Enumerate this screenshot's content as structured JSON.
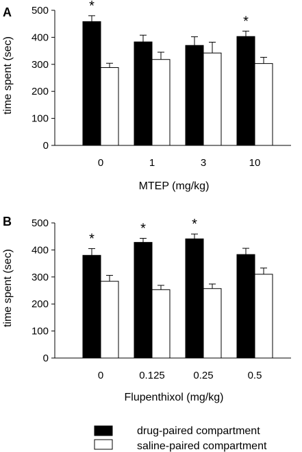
{
  "chart_data": [
    {
      "type": "bar",
      "panel_label": "A",
      "categories": [
        "0",
        "1",
        "3",
        "10"
      ],
      "xlabel": "MTEP (mg/kg)",
      "ylabel": "time spent (sec)",
      "ylim": [
        0,
        500
      ],
      "yticks": [
        "0",
        "100",
        "200",
        "300",
        "400",
        "500"
      ],
      "series": [
        {
          "name": "drug-paired compartment",
          "color": "#000000",
          "values": [
            458,
            383,
            370,
            403
          ],
          "errors": [
            22,
            25,
            32,
            20
          ]
        },
        {
          "name": "saline-paired compartment",
          "color": "#ffffff",
          "values": [
            288,
            318,
            342,
            303
          ],
          "errors": [
            16,
            27,
            40,
            23
          ]
        }
      ],
      "annotations": [
        {
          "text": "*",
          "category": "0"
        },
        {
          "text": "*",
          "category": "10"
        }
      ],
      "grid": false
    },
    {
      "type": "bar",
      "panel_label": "B",
      "categories": [
        "0",
        "0.125",
        "0.25",
        "0.5"
      ],
      "xlabel": "Flupenthixol (mg/kg)",
      "ylabel": "time spent (sec)",
      "ylim": [
        0,
        500
      ],
      "yticks": [
        "0",
        "100",
        "200",
        "300",
        "400",
        "500"
      ],
      "series": [
        {
          "name": "drug-paired compartment",
          "color": "#000000",
          "values": [
            380,
            428,
            441,
            383
          ],
          "errors": [
            25,
            15,
            18,
            23
          ]
        },
        {
          "name": "saline-paired compartment",
          "color": "#ffffff",
          "values": [
            284,
            253,
            257,
            310
          ],
          "errors": [
            22,
            16,
            17,
            23
          ]
        }
      ],
      "annotations": [
        {
          "text": "*",
          "category": "0"
        },
        {
          "text": "*",
          "category": "0.125"
        },
        {
          "text": "*",
          "category": "0.25"
        }
      ],
      "grid": false
    }
  ],
  "legend": {
    "placement": "bottom",
    "items": [
      {
        "label": "drug-paired compartment",
        "color": "#000000"
      },
      {
        "label": "saline-paired compartment",
        "color": "#ffffff"
      }
    ]
  }
}
